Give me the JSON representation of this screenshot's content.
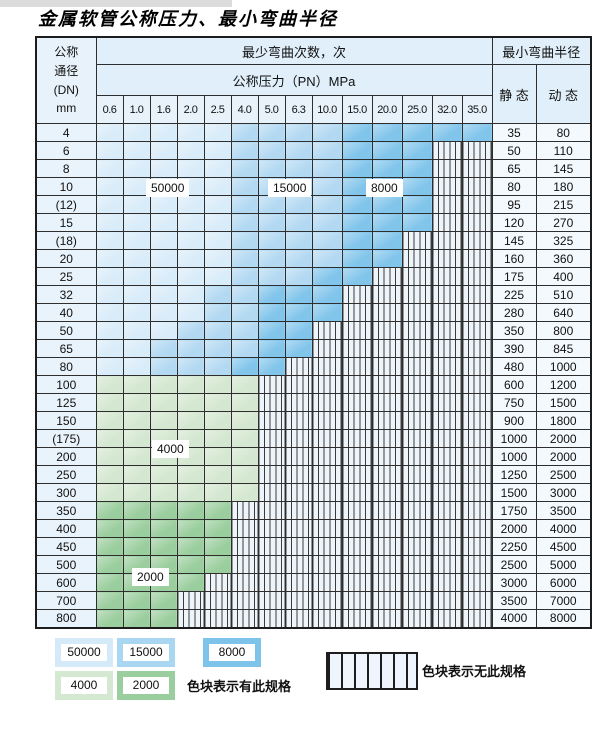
{
  "title": "金属软管公称压力、最小弯曲半径",
  "table": {
    "header": {
      "dn_lines": [
        "公称",
        "通径",
        "(DN)",
        "mm"
      ],
      "min_cycles": "最少弯曲次数，次",
      "pressure": "公称压力（PN）MPa",
      "min_radius": "最小弯曲半径",
      "static_label": "静 态",
      "dynamic_label": "动 态"
    },
    "pressure_ticks": [
      "0.6",
      "1.0",
      "1.6",
      "2.0",
      "2.5",
      "4.0",
      "5.0",
      "6.3",
      "10.0",
      "15.0",
      "20.0",
      "25.0",
      "32.0",
      "35.0"
    ],
    "rows": [
      {
        "dn": "4",
        "cells": [
          [
            "b50",
            5
          ],
          [
            "b15",
            4
          ],
          [
            "b8",
            5
          ]
        ],
        "static": "35",
        "dynamic": "80"
      },
      {
        "dn": "6",
        "cells": [
          [
            "b50",
            5
          ],
          [
            "b15",
            4
          ],
          [
            "b8",
            3
          ],
          [
            "h",
            2
          ]
        ],
        "static": "50",
        "dynamic": "110"
      },
      {
        "dn": "8",
        "cells": [
          [
            "b50",
            5
          ],
          [
            "b15",
            4
          ],
          [
            "b8",
            3
          ],
          [
            "h",
            2
          ]
        ],
        "static": "65",
        "dynamic": "145"
      },
      {
        "dn": "10",
        "cells": [
          [
            "b50",
            5
          ],
          [
            "b15",
            4
          ],
          [
            "b8",
            3
          ],
          [
            "h",
            2
          ]
        ],
        "static": "80",
        "dynamic": "180"
      },
      {
        "dn": "(12)",
        "cells": [
          [
            "b50",
            5
          ],
          [
            "b15",
            4
          ],
          [
            "b8",
            3
          ],
          [
            "h",
            2
          ]
        ],
        "static": "95",
        "dynamic": "215"
      },
      {
        "dn": "15",
        "cells": [
          [
            "b50",
            5
          ],
          [
            "b15",
            4
          ],
          [
            "b8",
            3
          ],
          [
            "h",
            2
          ]
        ],
        "static": "120",
        "dynamic": "270"
      },
      {
        "dn": "(18)",
        "cells": [
          [
            "b50",
            5
          ],
          [
            "b15",
            4
          ],
          [
            "b8",
            2
          ],
          [
            "h",
            3
          ]
        ],
        "static": "145",
        "dynamic": "325"
      },
      {
        "dn": "20",
        "cells": [
          [
            "b50",
            5
          ],
          [
            "b15",
            4
          ],
          [
            "b8",
            2
          ],
          [
            "h",
            3
          ]
        ],
        "static": "160",
        "dynamic": "360"
      },
      {
        "dn": "25",
        "cells": [
          [
            "b50",
            5
          ],
          [
            "b15",
            3
          ],
          [
            "b8",
            2
          ],
          [
            "h",
            4
          ]
        ],
        "static": "175",
        "dynamic": "400"
      },
      {
        "dn": "32",
        "cells": [
          [
            "b50",
            4
          ],
          [
            "b15",
            2
          ],
          [
            "b8",
            3
          ],
          [
            "h",
            5
          ]
        ],
        "static": "225",
        "dynamic": "510"
      },
      {
        "dn": "40",
        "cells": [
          [
            "b50",
            4
          ],
          [
            "b15",
            2
          ],
          [
            "b8",
            3
          ],
          [
            "h",
            5
          ]
        ],
        "static": "280",
        "dynamic": "640"
      },
      {
        "dn": "50",
        "cells": [
          [
            "b50",
            3
          ],
          [
            "b15",
            3
          ],
          [
            "b8",
            2
          ],
          [
            "h",
            6
          ]
        ],
        "static": "350",
        "dynamic": "800"
      },
      {
        "dn": "65",
        "cells": [
          [
            "b50",
            2
          ],
          [
            "b15",
            4
          ],
          [
            "b8",
            2
          ],
          [
            "h",
            6
          ]
        ],
        "static": "390",
        "dynamic": "845"
      },
      {
        "dn": "80",
        "cells": [
          [
            "b50",
            2
          ],
          [
            "b15",
            3
          ],
          [
            "b8",
            2
          ],
          [
            "h",
            7
          ]
        ],
        "static": "480",
        "dynamic": "1000"
      },
      {
        "dn": "100",
        "cells": [
          [
            "g4",
            6
          ],
          [
            "h",
            8
          ]
        ],
        "static": "600",
        "dynamic": "1200"
      },
      {
        "dn": "125",
        "cells": [
          [
            "g4",
            6
          ],
          [
            "h",
            8
          ]
        ],
        "static": "750",
        "dynamic": "1500"
      },
      {
        "dn": "150",
        "cells": [
          [
            "g4",
            6
          ],
          [
            "h",
            8
          ]
        ],
        "static": "900",
        "dynamic": "1800"
      },
      {
        "dn": "(175)",
        "cells": [
          [
            "g4",
            6
          ],
          [
            "h",
            8
          ]
        ],
        "static": "1000",
        "dynamic": "2000"
      },
      {
        "dn": "200",
        "cells": [
          [
            "g4",
            6
          ],
          [
            "h",
            8
          ]
        ],
        "static": "1000",
        "dynamic": "2000"
      },
      {
        "dn": "250",
        "cells": [
          [
            "g4",
            6
          ],
          [
            "h",
            8
          ]
        ],
        "static": "1250",
        "dynamic": "2500"
      },
      {
        "dn": "300",
        "cells": [
          [
            "g4",
            6
          ],
          [
            "h",
            8
          ]
        ],
        "static": "1500",
        "dynamic": "3000"
      },
      {
        "dn": "350",
        "cells": [
          [
            "g2",
            5
          ],
          [
            "h",
            9
          ]
        ],
        "static": "1750",
        "dynamic": "3500"
      },
      {
        "dn": "400",
        "cells": [
          [
            "g2",
            5
          ],
          [
            "h",
            9
          ]
        ],
        "static": "2000",
        "dynamic": "4000"
      },
      {
        "dn": "450",
        "cells": [
          [
            "g2",
            5
          ],
          [
            "h",
            9
          ]
        ],
        "static": "2250",
        "dynamic": "4500"
      },
      {
        "dn": "500",
        "cells": [
          [
            "g2",
            5
          ],
          [
            "h",
            9
          ]
        ],
        "static": "2500",
        "dynamic": "5000"
      },
      {
        "dn": "600",
        "cells": [
          [
            "g2",
            4
          ],
          [
            "h",
            10
          ]
        ],
        "static": "3000",
        "dynamic": "6000"
      },
      {
        "dn": "700",
        "cells": [
          [
            "g2",
            3
          ],
          [
            "h",
            11
          ]
        ],
        "static": "3500",
        "dynamic": "7000"
      },
      {
        "dn": "800",
        "cells": [
          [
            "g2",
            3
          ],
          [
            "h",
            11
          ]
        ],
        "static": "4000",
        "dynamic": "8000"
      }
    ]
  },
  "overlays": {
    "l50000": "50000",
    "l15000": "15000",
    "l8000": "8000",
    "l4000": "4000",
    "l2000": "2000"
  },
  "legend": {
    "items": [
      {
        "label": "50000",
        "color": "#d5eaf8"
      },
      {
        "label": "15000",
        "color": "#a9d6f1"
      },
      {
        "label": "8000",
        "color": "#7ec4ea"
      },
      {
        "label": "4000",
        "color": "#d5e8d1"
      },
      {
        "label": "2000",
        "color": "#9bce9e"
      }
    ],
    "has_spec_note": "色块表示有此规格",
    "no_spec_note": "色块表示无此规格"
  },
  "colors": {
    "cycles_50000": "#d9ecf9",
    "cycles_15000": "#b3d9f2",
    "cycles_8000": "#82c5eb",
    "cycles_4000": "#d4e7d0",
    "cycles_2000": "#9bce9e",
    "no_spec_bg": "#edf4fa"
  }
}
